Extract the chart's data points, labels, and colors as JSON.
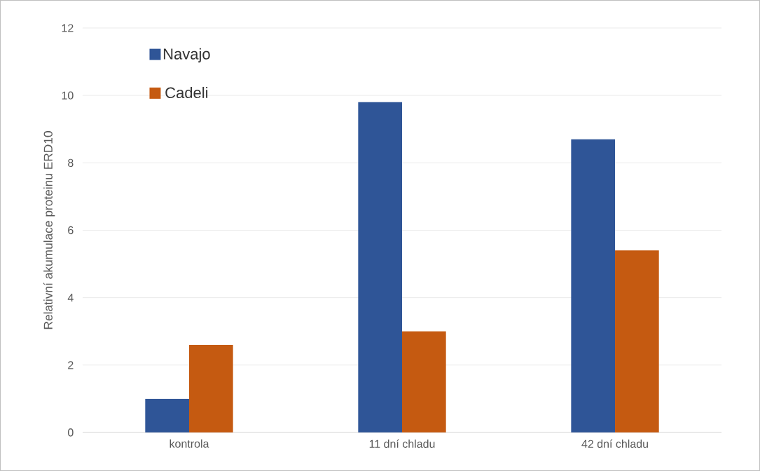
{
  "chart_data": {
    "type": "bar",
    "ylabel": "Relativní akumulace proteinu ERD10",
    "categories": [
      "kontrola",
      "11 dní chladu",
      "42 dní chladu"
    ],
    "series": [
      {
        "name": "Navajo",
        "color": "#2f5597",
        "values": [
          1.0,
          9.8,
          8.7
        ]
      },
      {
        "name": "Cadeli",
        "color": "#c55a11",
        "values": [
          2.6,
          3.0,
          5.4
        ]
      }
    ],
    "ylim": [
      0,
      12
    ],
    "yticks": [
      0,
      2,
      4,
      6,
      8,
      10,
      12
    ],
    "grid": "y",
    "legend": "top left"
  }
}
